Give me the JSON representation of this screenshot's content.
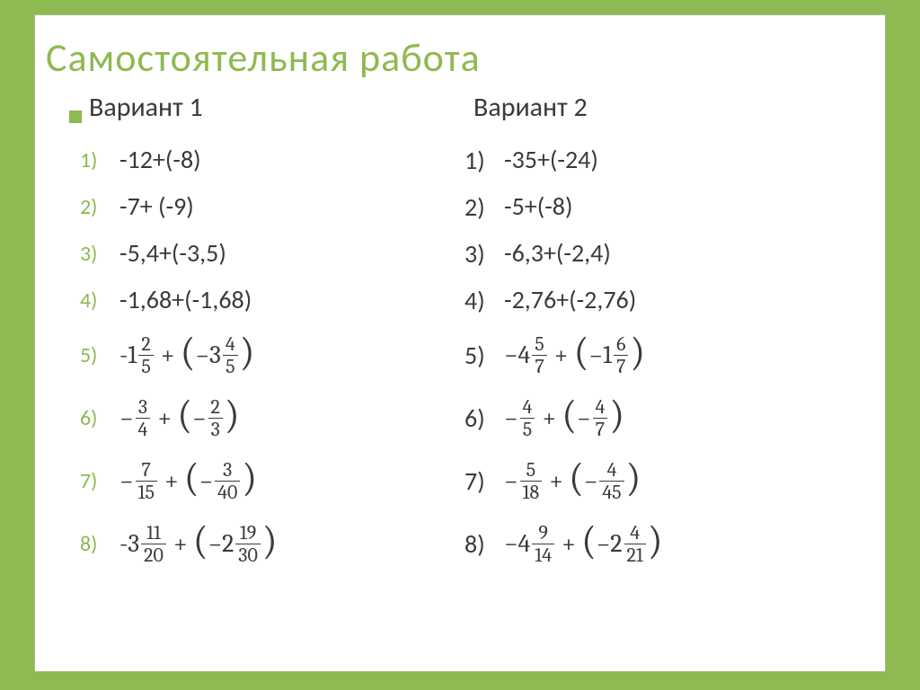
{
  "title": "Самостоятельная работа",
  "colors": {
    "background": "#8fb952",
    "panel_bg": "#ffffff",
    "panel_border": "#a8bd83",
    "title_color": "#8fb952",
    "accent": "#8fb952",
    "text": "#3a3a3a",
    "frac_border": "#3a3a3a"
  },
  "fonts": {
    "title_size": 44,
    "heading_size": 30,
    "body_size": 28,
    "frac_size": 22,
    "paren_size": 44,
    "body_family": "Calibri, Arial, sans-serif",
    "math_family": "Cambria Math, Cambria, Times New Roman, serif"
  },
  "columns": [
    {
      "heading": "Вариант 1",
      "number_style": "accent",
      "items": [
        {
          "n": "1)",
          "kind": "plain",
          "text": "-12+(-8)"
        },
        {
          "n": "2)",
          "kind": "plain",
          "text": "-7+ (-9)"
        },
        {
          "n": "3)",
          "kind": "plain",
          "text": "-5,4+(-3,5)"
        },
        {
          "n": "4)",
          "kind": "plain",
          "text": "-1,68+(-1,68)"
        },
        {
          "n": "5)",
          "kind": "mix_plus_mix",
          "a_int": "-1",
          "a_num": "2",
          "a_den": "5",
          "b_int": "3",
          "b_num": "4",
          "b_den": "5"
        },
        {
          "n": "6)",
          "kind": "frac_plus_frac",
          "a_num": "3",
          "a_den": "4",
          "b_num": "2",
          "b_den": "3"
        },
        {
          "n": "7)",
          "kind": "frac_plus_frac",
          "a_num": "7",
          "a_den": "15",
          "b_num": "3",
          "b_den": "40"
        },
        {
          "n": "8)",
          "kind": "mix_plus_mix",
          "a_int": "-3",
          "a_num": "11",
          "a_den": "20",
          "b_int": "2",
          "b_num": "19",
          "b_den": "30"
        }
      ]
    },
    {
      "heading": "Вариант 2",
      "number_style": "text",
      "items": [
        {
          "n": "1)",
          "kind": "plain",
          "text": " -35+(-24)"
        },
        {
          "n": "2)",
          "kind": "plain",
          "text": " -5+(-8)"
        },
        {
          "n": "3)",
          "kind": "plain",
          "text": " -6,3+(-2,4)"
        },
        {
          "n": "4)",
          "kind": "plain",
          "text": " -2,76+(-2,76)"
        },
        {
          "n": "5)",
          "kind": "mix_plus_mix",
          "a_int": "−4",
          "a_num": "5",
          "a_den": "7",
          "b_int": "1",
          "b_num": "6",
          "b_den": "7"
        },
        {
          "n": "6)",
          "kind": "frac_plus_frac",
          "a_num": "4",
          "a_den": "5",
          "b_num": "4",
          "b_den": "7"
        },
        {
          "n": "7)",
          "kind": "frac_plus_frac",
          "a_num": "5",
          "a_den": "18",
          "b_num": "4",
          "b_den": "45"
        },
        {
          "n": "8)",
          "kind": "mix_plus_mix",
          "a_int": "−4",
          "a_num": "9",
          "a_den": "14",
          "b_int": "2",
          "b_num": "4",
          "b_den": "21"
        }
      ]
    }
  ]
}
